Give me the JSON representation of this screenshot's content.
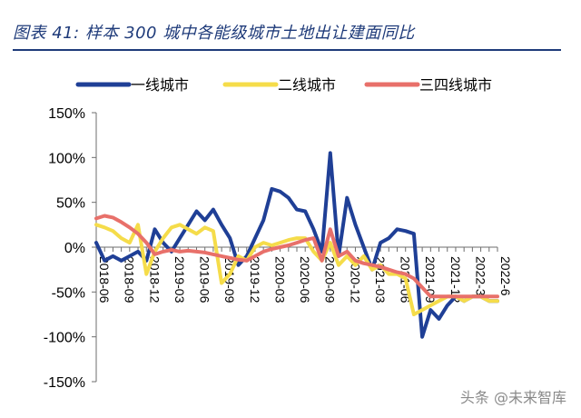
{
  "header": {
    "title": "图表 41:  样本 300 城中各能级城市土地出让建面同比"
  },
  "watermark": "头条 @未来智库",
  "chart_data": {
    "type": "line",
    "ylim": [
      -150,
      150
    ],
    "yticks": [
      150,
      100,
      50,
      0,
      -50,
      -100,
      -150
    ],
    "yticklabels": [
      "150%",
      "100%",
      "50%",
      "0%",
      "-50%",
      "-100%",
      "-150%"
    ],
    "x_range": [
      "2018-06",
      "2022-06"
    ],
    "xticklabels": [
      "2018-06",
      "2018-09",
      "2018-12",
      "2019-03",
      "2019-06",
      "2019-09",
      "2019-12",
      "2020-03",
      "2020-06",
      "2020-09",
      "2020-12",
      "2021-03",
      "2021-06",
      "2021-09",
      "2021-12",
      "2022-3",
      "2022-6"
    ],
    "legend_position": "top",
    "series": [
      {
        "name": "一线城市",
        "color": "#1f3f96",
        "x": [
          "2018-06",
          "2018-07",
          "2018-08",
          "2018-09",
          "2018-10",
          "2018-11",
          "2018-12",
          "2019-01",
          "2019-02",
          "2019-03",
          "2019-04",
          "2019-05",
          "2019-06",
          "2019-07",
          "2019-08",
          "2019-09",
          "2019-10",
          "2019-11",
          "2019-12",
          "2020-01",
          "2020-02",
          "2020-03",
          "2020-04",
          "2020-05",
          "2020-06",
          "2020-07",
          "2020-08",
          "2020-09",
          "2020-10",
          "2020-11",
          "2020-12",
          "2021-01",
          "2021-02",
          "2021-03",
          "2021-04",
          "2021-05",
          "2021-06",
          "2021-07",
          "2021-08",
          "2021-09",
          "2021-10",
          "2021-11",
          "2021-12",
          "2022-01",
          "2022-02",
          "2022-03",
          "2022-04",
          "2022-05",
          "2022-06"
        ],
        "values": [
          5,
          -15,
          -10,
          -15,
          -10,
          -5,
          -15,
          20,
          5,
          -5,
          10,
          25,
          40,
          30,
          42,
          25,
          10,
          -20,
          -10,
          10,
          30,
          65,
          62,
          55,
          42,
          40,
          20,
          -5,
          105,
          -10,
          55,
          25,
          0,
          -25,
          5,
          10,
          20,
          18,
          15,
          -100,
          -70,
          -80,
          -65,
          -55,
          -60,
          -55,
          -55,
          -60,
          -60
        ]
      },
      {
        "name": "二线城市",
        "color": "#f5dc4a",
        "x": [
          "2018-06",
          "2018-07",
          "2018-08",
          "2018-09",
          "2018-10",
          "2018-11",
          "2018-12",
          "2019-01",
          "2019-02",
          "2019-03",
          "2019-04",
          "2019-05",
          "2019-06",
          "2019-07",
          "2019-08",
          "2019-09",
          "2019-10",
          "2019-11",
          "2019-12",
          "2020-01",
          "2020-02",
          "2020-03",
          "2020-04",
          "2020-05",
          "2020-06",
          "2020-07",
          "2020-08",
          "2020-09",
          "2020-10",
          "2020-11",
          "2020-12",
          "2021-01",
          "2021-02",
          "2021-03",
          "2021-04",
          "2021-05",
          "2021-06",
          "2021-07",
          "2021-08",
          "2021-09",
          "2021-10",
          "2021-11",
          "2021-12",
          "2022-01",
          "2022-02",
          "2022-03",
          "2022-04",
          "2022-05",
          "2022-06"
        ],
        "values": [
          25,
          22,
          18,
          10,
          5,
          25,
          -30,
          -5,
          10,
          22,
          25,
          20,
          15,
          22,
          18,
          -40,
          -30,
          -10,
          -15,
          0,
          5,
          2,
          5,
          8,
          10,
          10,
          -5,
          -15,
          5,
          -20,
          -10,
          -20,
          -10,
          -25,
          -20,
          -30,
          -30,
          -35,
          -75,
          -70,
          -65,
          -60,
          -55,
          -55,
          -60,
          -55,
          -55,
          -60,
          -60
        ]
      },
      {
        "name": "三四线城市",
        "color": "#e8706a",
        "x": [
          "2018-06",
          "2018-07",
          "2018-08",
          "2018-09",
          "2018-10",
          "2018-11",
          "2018-12",
          "2019-01",
          "2019-02",
          "2019-03",
          "2019-04",
          "2019-05",
          "2019-06",
          "2019-07",
          "2019-08",
          "2019-09",
          "2019-10",
          "2019-11",
          "2019-12",
          "2020-01",
          "2020-02",
          "2020-03",
          "2020-04",
          "2020-05",
          "2020-06",
          "2020-07",
          "2020-08",
          "2020-09",
          "2020-10",
          "2020-11",
          "2020-12",
          "2021-01",
          "2021-02",
          "2021-03",
          "2021-04",
          "2021-05",
          "2021-06",
          "2021-07",
          "2021-08",
          "2021-09",
          "2021-10",
          "2021-11",
          "2021-12",
          "2022-01",
          "2022-02",
          "2022-03",
          "2022-04",
          "2022-05",
          "2022-06"
        ],
        "values": [
          32,
          35,
          33,
          28,
          22,
          15,
          5,
          -8,
          -5,
          -3,
          -5,
          -4,
          -5,
          -6,
          -8,
          -10,
          -12,
          -14,
          -15,
          -10,
          -5,
          -2,
          0,
          2,
          5,
          8,
          10,
          -15,
          20,
          -10,
          -5,
          -15,
          -18,
          -20,
          -22,
          -25,
          -28,
          -30,
          -35,
          -45,
          -55,
          -55,
          -55,
          -55,
          -55,
          -55,
          -55,
          -55,
          -55
        ]
      }
    ]
  }
}
